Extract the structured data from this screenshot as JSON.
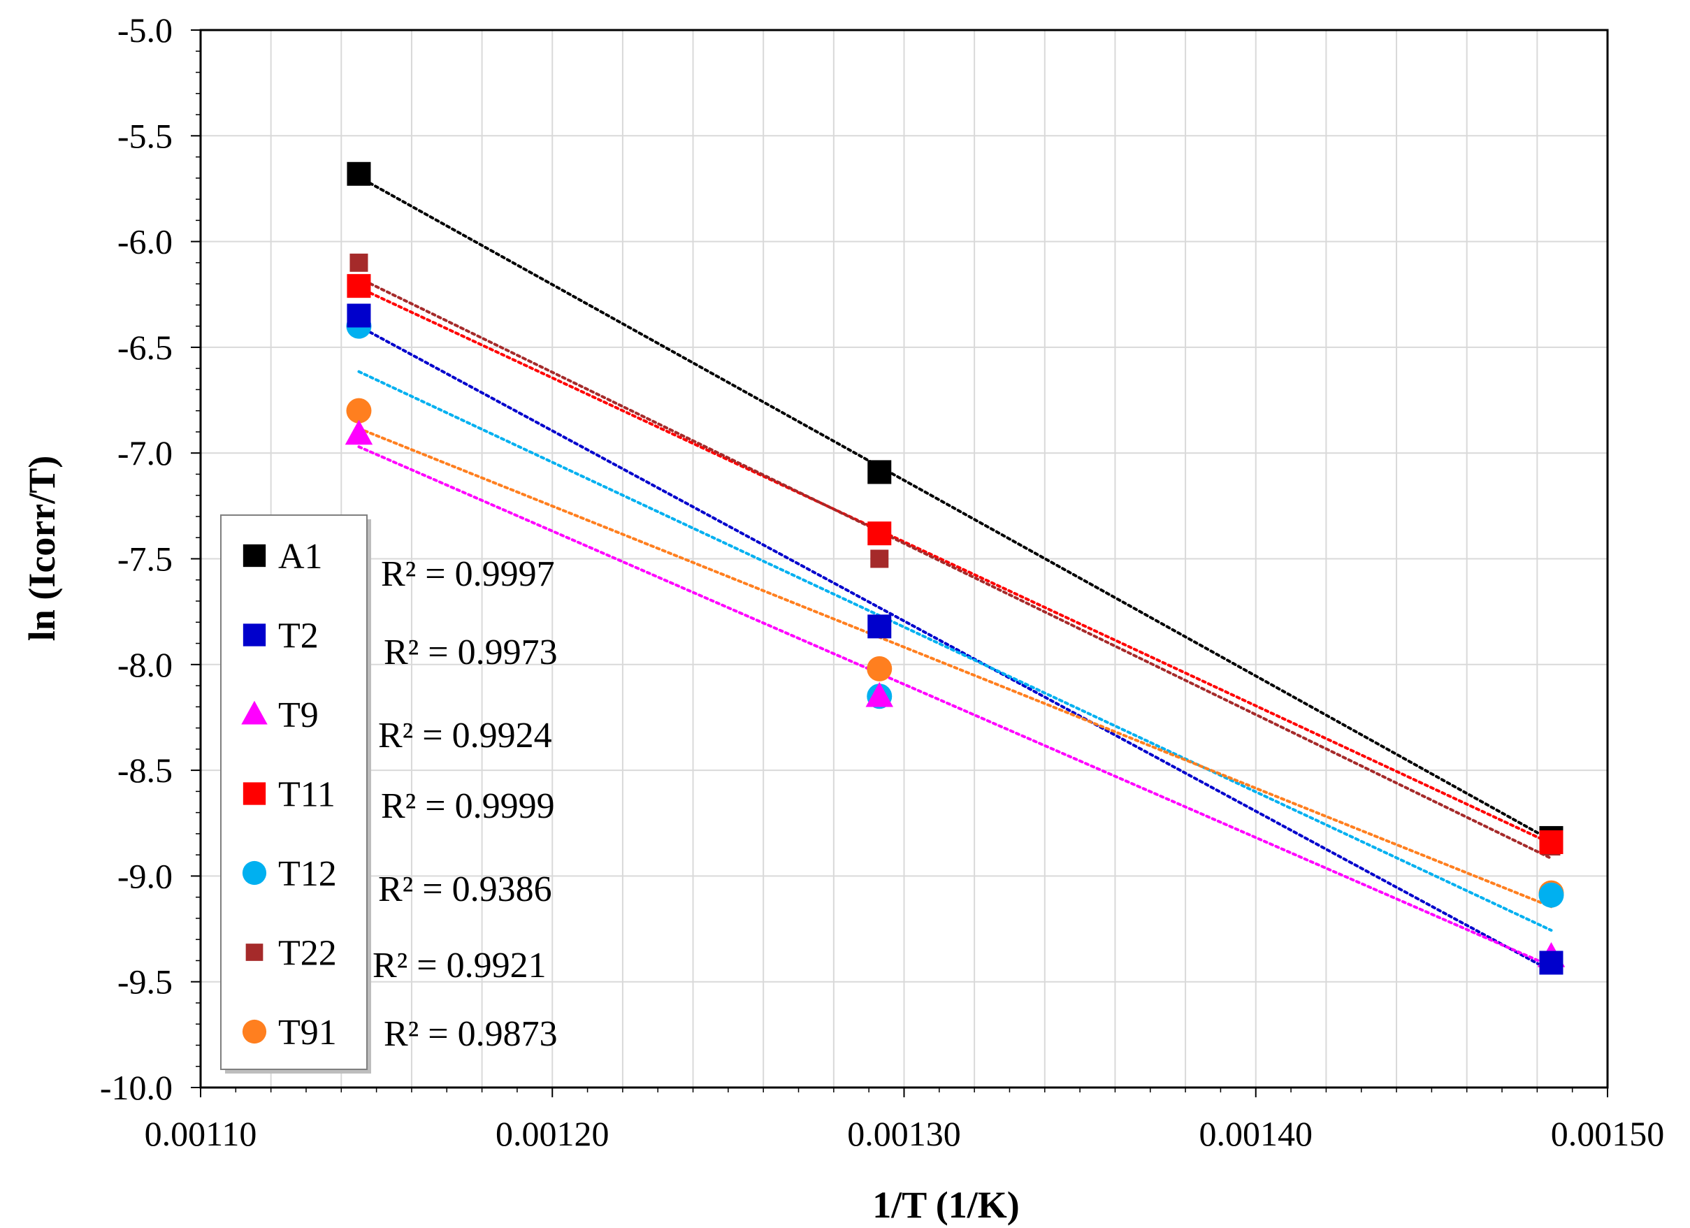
{
  "chart_data": {
    "type": "scatter",
    "title": "",
    "xlabel": "1/T (1/K)",
    "ylabel": "ln (Icorr/T)",
    "xlim": [
      0.0011,
      0.0015
    ],
    "ylim": [
      -10.0,
      -5.0
    ],
    "x_ticks": [
      "0.00110",
      "0.00120",
      "0.00130",
      "0.00140",
      "0.00150"
    ],
    "y_ticks": [
      "-5.0",
      "-5.5",
      "-6.0",
      "-6.5",
      "-7.0",
      "-7.5",
      "-8.0",
      "-8.5",
      "-9.0",
      "-9.5",
      "-10.0"
    ],
    "grid": true,
    "trendline": "linear, dotted",
    "legend_position": "bottom-left",
    "x": [
      0.001145,
      0.001293,
      0.001484
    ],
    "series": [
      {
        "name": "A1",
        "marker": "square",
        "color": "#000000",
        "y": [
          -5.68,
          -7.09,
          -8.82
        ],
        "r2": "R² = 0.9997"
      },
      {
        "name": "T2",
        "marker": "square",
        "color": "#0000CC",
        "y": [
          -6.35,
          -7.82,
          -9.41
        ],
        "r2": "R² = 0.9973"
      },
      {
        "name": "T9",
        "marker": "triangle",
        "color": "#FF00FF",
        "y": [
          -6.91,
          -8.15,
          -9.38
        ],
        "r2": "R² = 0.9924"
      },
      {
        "name": "T11",
        "marker": "square",
        "color": "#FF0000",
        "y": [
          -6.21,
          -7.38,
          -8.84
        ],
        "r2": "R² = 0.9999"
      },
      {
        "name": "T12",
        "marker": "circle",
        "color": "#00B0F0",
        "y": [
          -6.4,
          -8.15,
          -9.09
        ],
        "r2": "R² = 0.9386"
      },
      {
        "name": "T22",
        "marker": "square-small",
        "color": "#A52A2A",
        "y": [
          -6.1,
          -7.5,
          -8.86
        ],
        "r2": "R² = 0.9921"
      },
      {
        "name": "T91",
        "marker": "circle",
        "color": "#FF7F1F",
        "y": [
          -6.8,
          -8.02,
          -9.08
        ],
        "r2": "R² = 0.9873"
      }
    ]
  }
}
